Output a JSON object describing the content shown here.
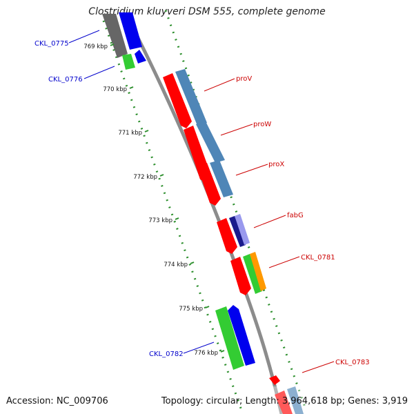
{
  "title": "Clostridium kluyveri DSM 555, complete genome",
  "footer": {
    "accession": "Accession: NC_009706",
    "summary": "Topology: circular; Length: 3,964,618 bp; Genes: 3,919"
  },
  "ticks": [
    "769 kbp",
    "770 kbp",
    "771 kbp",
    "772 kbp",
    "773 kbp",
    "774 kbp",
    "775 kbp",
    "776 kbp"
  ],
  "genes": {
    "forward": [
      "proV",
      "proW",
      "proX",
      "fabG",
      "CKL_0781",
      "CKL_0783"
    ],
    "reverse": [
      "CKL_0775",
      "CKL_0776",
      "CKL_0782"
    ]
  },
  "colors": {
    "forward_label": "#cc0000",
    "reverse_label": "#0000cc",
    "cds": "#ff0000",
    "blast_blue": "#4f86b7",
    "navy": "#1a1a8c",
    "green": "#33cc33",
    "orange": "#ff9900",
    "blue": "#0000ee",
    "grey": "#666666",
    "backbone": "#888888",
    "ring": "#339933"
  }
}
